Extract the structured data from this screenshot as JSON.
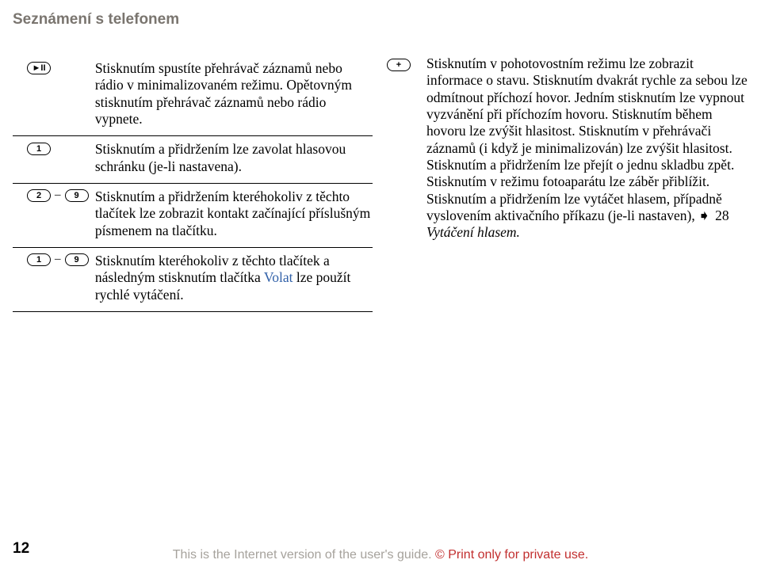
{
  "header": "Seznámení s telefonem",
  "pageNumber": "12",
  "footer": {
    "line1": "This is the Internet version of the user's guide. ",
    "line2": "© Print only for private use."
  },
  "leftRows": [
    {
      "keyText": "►II",
      "desc": "Stisknutím spustíte přehrávač záznamů nebo rádio v minima­lizovaném režimu. Opětovným stisknutím přehrávač záznamů nebo rádio vypnete."
    },
    {
      "keyText": "1",
      "desc": "Stisknutím a přidržením lze zavolat hlasovou schránku (je-li nastavena)."
    },
    {
      "keyRange": [
        "2",
        "9"
      ],
      "desc": "Stisknutím a přidržením kteréhokoliv z těchto tlačítek lze zobrazit kontakt začínající příslušným písmenem na tlačítku."
    },
    {
      "keyRange": [
        "1",
        "9"
      ],
      "descPre": "Stisknutím kteréhokoliv z těchto tlačítek a následným stisknutím tlačítka ",
      "volat": "Volat",
      "descPost": " lze použít rychlé vytáčení."
    }
  ],
  "rightRow": {
    "keyText": "+",
    "desc": "Stisknutím v pohotovostním režimu lze zobrazit informace o stavu. Stisknutím dvakrát rychle za sebou lze odmítnout příchozí hovor. Jedním stisknutím lze vypnout vyzvánění při příchozím hovoru. Stisknutím během hovoru lze zvýšit hlasitost. Stisknutím v přehrávači záznamů (i když je minimalizován) lze zvýšit hlasitost. Stisknutím a přidržením lze přejít o jednu skladbu zpět. Stisknutím v režimu fotoaparátu lze záběr přiblížit. Stisknutím a přidržením lze vytáčet hlasem, případně vyslovením aktivačního příkazu (je-li nastaven), ",
    "refGlyph": "➧",
    "refPage": "28 ",
    "refItalic": "Vytáčení hlasem."
  }
}
